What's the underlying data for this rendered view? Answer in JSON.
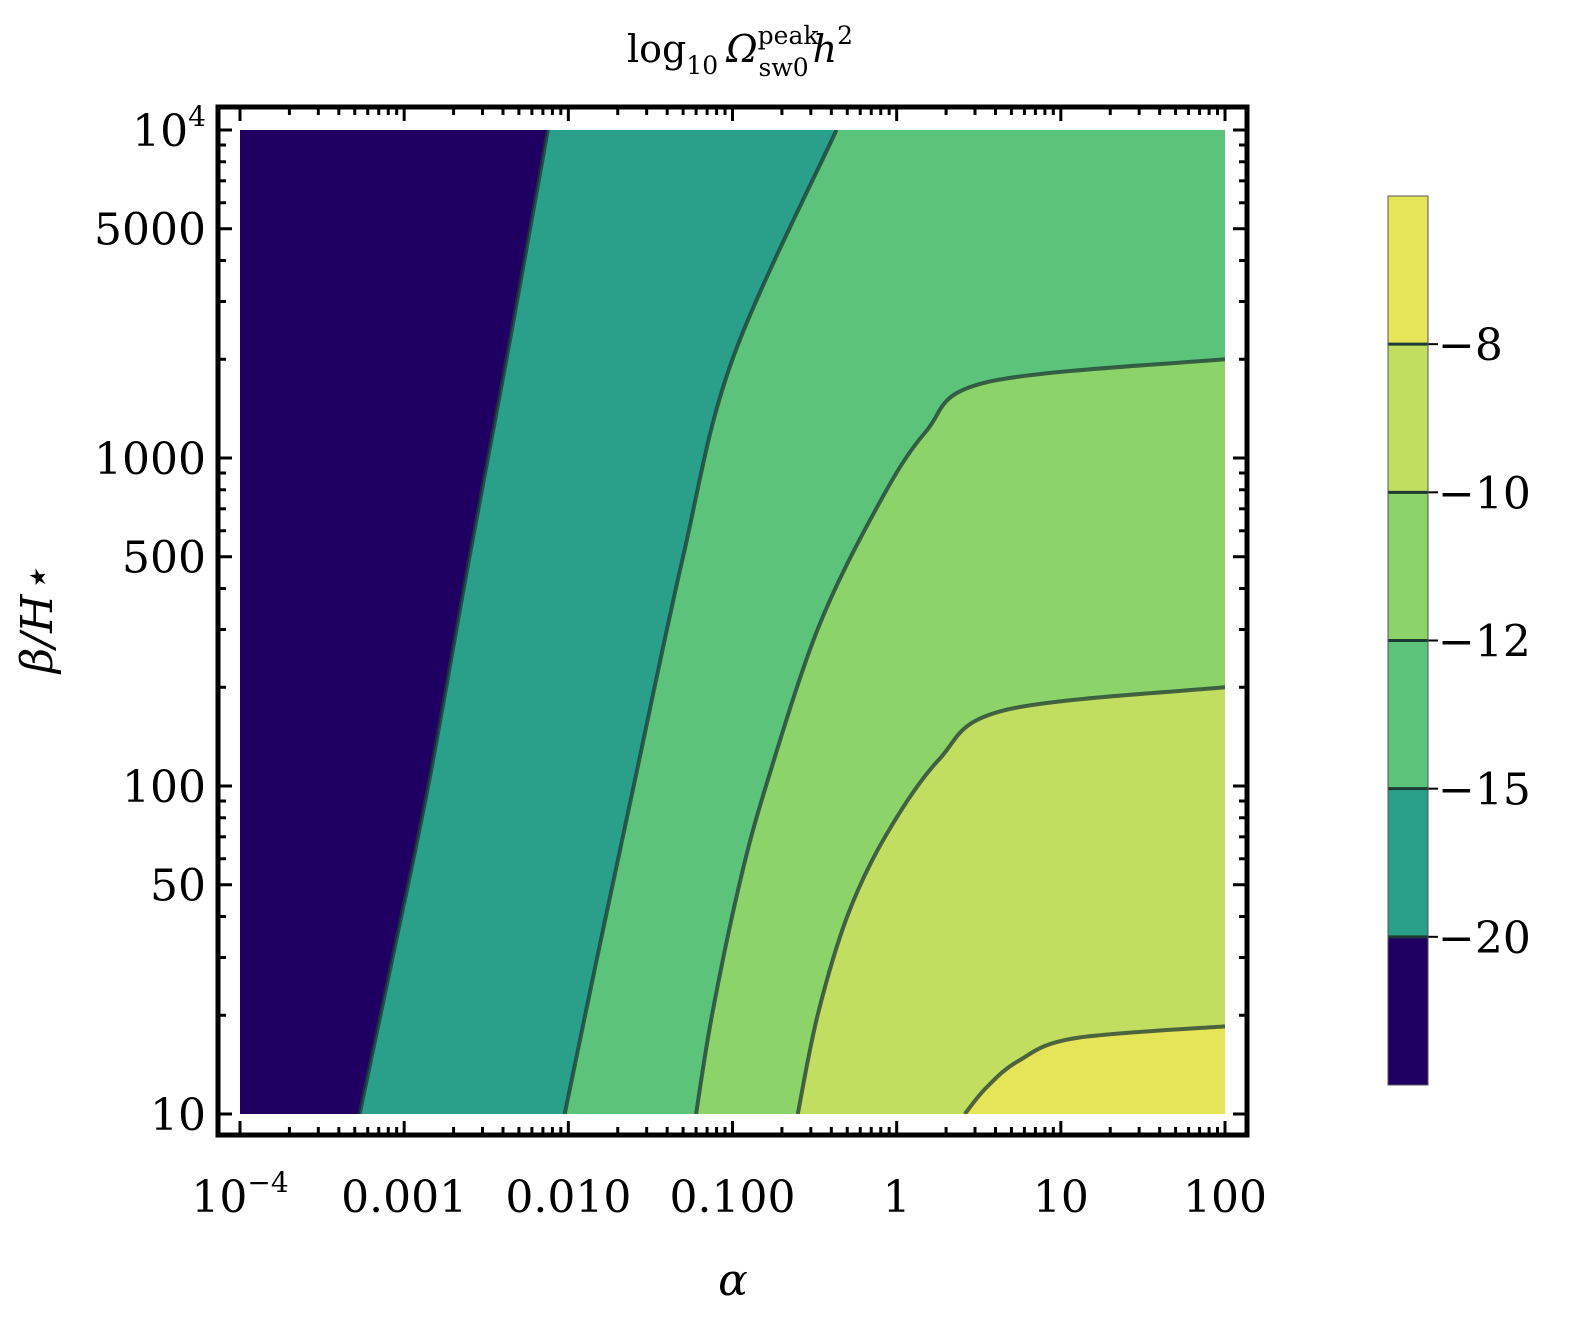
{
  "chart_data": {
    "type": "contour",
    "title": {
      "prefix": "log",
      "prefix_sub": "10",
      "symbol": "Ω",
      "sup": "peak",
      "sub": "sw0",
      "suffix": "h",
      "suffix_sup": "2"
    },
    "xlabel": "α",
    "ylabel": "β/H⋆",
    "x_scale": "log",
    "y_scale": "log",
    "xlim": [
      0.0001,
      100
    ],
    "ylim": [
      10,
      10000
    ],
    "x_ticks": [
      {
        "value": 0.0001,
        "base": "10",
        "exp": "−4"
      },
      {
        "value": 0.001,
        "label": "0.001"
      },
      {
        "value": 0.01,
        "label": "0.010"
      },
      {
        "value": 0.1,
        "label": "0.100"
      },
      {
        "value": 1,
        "label": "1"
      },
      {
        "value": 10,
        "label": "10"
      },
      {
        "value": 100,
        "label": "100"
      }
    ],
    "y_ticks": [
      {
        "value": 10,
        "label": "10"
      },
      {
        "value": 50,
        "label": "50"
      },
      {
        "value": 100,
        "label": "100"
      },
      {
        "value": 500,
        "label": "500"
      },
      {
        "value": 1000,
        "label": "1000"
      },
      {
        "value": 5000,
        "label": "5000"
      },
      {
        "value": 10000,
        "base": "10",
        "exp": "4"
      }
    ],
    "colorbar": {
      "levels": [
        {
          "label": "−20",
          "color": "#1f0062"
        },
        {
          "label": "−15",
          "color": "#2aa08a"
        },
        {
          "label": "−12",
          "color": "#5bc47a"
        },
        {
          "label": "−10",
          "color": "#8cd46a"
        },
        {
          "label": "−8",
          "color": "#c2de60"
        }
      ],
      "top_color": "#e6e457"
    },
    "region_colors": [
      "#1f0062",
      "#2aa08a",
      "#5bc47a",
      "#8cd46a",
      "#c2de60",
      "#e6e457"
    ],
    "contours": [
      {
        "level": "−20",
        "points": [
          [
            0.000535,
            10
          ],
          [
            0.00085,
            30
          ],
          [
            0.0014,
            100
          ],
          [
            0.0025,
            500
          ],
          [
            0.0042,
            2000
          ],
          [
            0.0075,
            10000
          ]
        ]
      },
      {
        "level": "−15",
        "points": [
          [
            0.0095,
            10
          ],
          [
            0.015,
            30
          ],
          [
            0.025,
            100
          ],
          [
            0.05,
            500
          ],
          [
            0.1,
            2000
          ],
          [
            0.43,
            10000
          ]
        ]
      },
      {
        "level": "−12",
        "points": [
          [
            0.06,
            10
          ],
          [
            0.075,
            20
          ],
          [
            0.11,
            50
          ],
          [
            0.16,
            100
          ],
          [
            0.33,
            300
          ],
          [
            0.75,
            700
          ],
          [
            1.5,
            1200
          ],
          [
            3.5,
            1700
          ],
          [
            100,
            2000
          ]
        ]
      },
      {
        "level": "−10",
        "points": [
          [
            0.25,
            10
          ],
          [
            0.33,
            20
          ],
          [
            0.5,
            40
          ],
          [
            0.85,
            70
          ],
          [
            1.8,
            120
          ],
          [
            4.5,
            170
          ],
          [
            100,
            200
          ]
        ]
      },
      {
        "level": "−8",
        "points": [
          [
            2.6,
            10
          ],
          [
            3.5,
            12
          ],
          [
            5.5,
            14.5
          ],
          [
            12,
            17
          ],
          [
            100,
            18.5
          ]
        ]
      }
    ]
  }
}
